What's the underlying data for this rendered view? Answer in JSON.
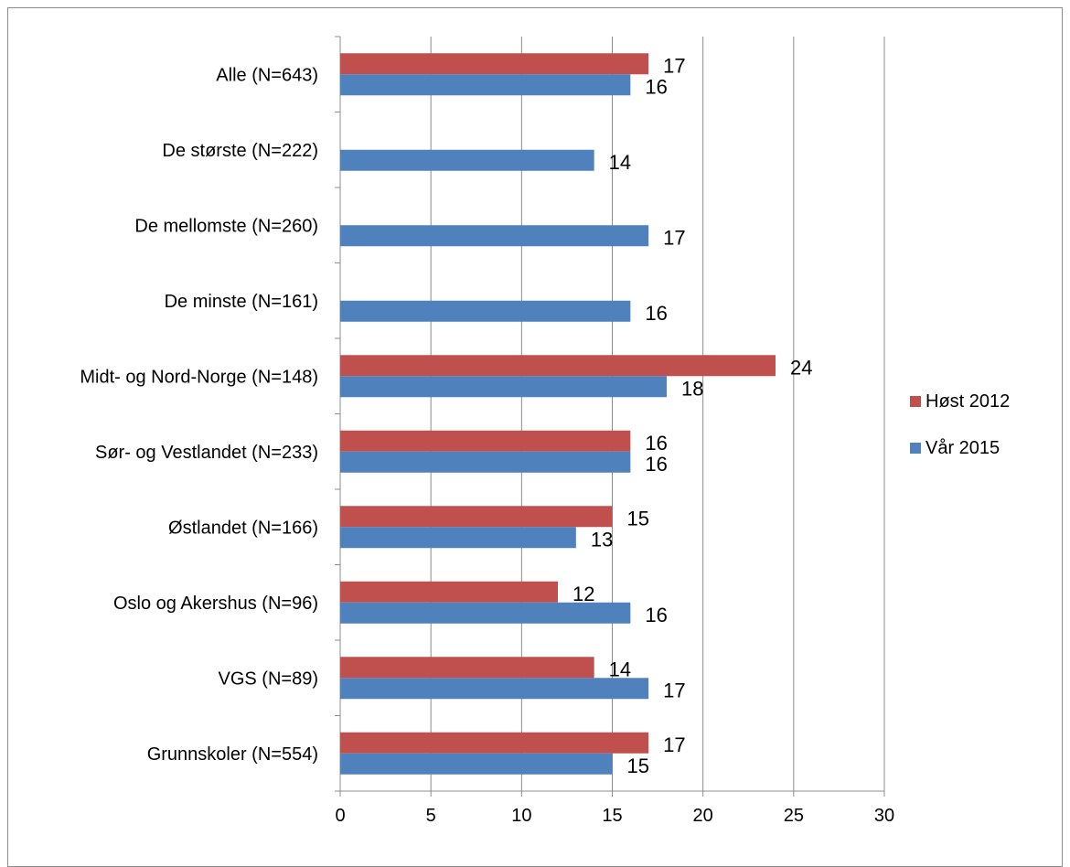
{
  "chart_data": {
    "type": "bar",
    "orientation": "horizontal",
    "categories": [
      "Alle (N=643)",
      "De største (N=222)",
      "De mellomste (N=260)",
      "De minste (N=161)",
      "Midt- og Nord-Norge (N=148)",
      "Sør- og Vestlandet (N=233)",
      "Østlandet (N=166)",
      "Oslo og Akershus (N=96)",
      "VGS (N=89)",
      "Grunnskoler (N=554)"
    ],
    "series": [
      {
        "name": "Høst 2012",
        "color": "#c0504d",
        "values": [
          17,
          null,
          null,
          null,
          24,
          16,
          15,
          12,
          14,
          17
        ]
      },
      {
        "name": "Vår 2015",
        "color": "#4f81bd",
        "values": [
          16,
          14,
          17,
          16,
          18,
          16,
          13,
          16,
          17,
          15
        ]
      }
    ],
    "xlim": [
      0,
      30
    ],
    "xticks": [
      0,
      5,
      10,
      15,
      20,
      25,
      30
    ],
    "grid": "vertical",
    "legend": "right",
    "title": "",
    "xlabel": "",
    "ylabel": ""
  }
}
